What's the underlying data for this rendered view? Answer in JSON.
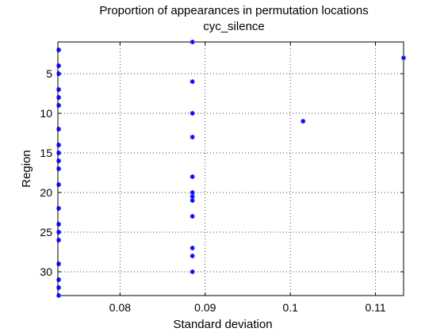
{
  "chart_data": {
    "type": "scatter",
    "title": "Proportion of appearances in permutation locations",
    "subtitle": "cyc_silence",
    "xlabel": "Standard deviation",
    "ylabel": "Region",
    "xlim": [
      0.0727,
      0.1133
    ],
    "ylim": [
      1,
      33
    ],
    "y_reversed": true,
    "grid": "dotted",
    "marker_color": "#0000ff",
    "x_ticks": [
      {
        "value": 0.08,
        "label": "0.08"
      },
      {
        "value": 0.09,
        "label": "0.09"
      },
      {
        "value": 0.1,
        "label": "0.1"
      },
      {
        "value": 0.11,
        "label": "0.11"
      }
    ],
    "y_ticks": [
      {
        "value": 5,
        "label": "5"
      },
      {
        "value": 10,
        "label": "10"
      },
      {
        "value": 15,
        "label": "15"
      },
      {
        "value": 20,
        "label": "20"
      },
      {
        "value": 25,
        "label": "25"
      },
      {
        "value": 30,
        "label": "30"
      }
    ],
    "points": [
      {
        "x": 0.0885,
        "y": 1
      },
      {
        "x": 0.1133,
        "y": 3
      },
      {
        "x": 0.0728,
        "y": 2
      },
      {
        "x": 0.0728,
        "y": 4
      },
      {
        "x": 0.0728,
        "y": 5
      },
      {
        "x": 0.0885,
        "y": 6
      },
      {
        "x": 0.0728,
        "y": 7
      },
      {
        "x": 0.0728,
        "y": 8
      },
      {
        "x": 0.0728,
        "y": 9
      },
      {
        "x": 0.0885,
        "y": 10
      },
      {
        "x": 0.1015,
        "y": 11
      },
      {
        "x": 0.0728,
        "y": 12
      },
      {
        "x": 0.0885,
        "y": 13
      },
      {
        "x": 0.0728,
        "y": 14
      },
      {
        "x": 0.0728,
        "y": 15
      },
      {
        "x": 0.0728,
        "y": 16
      },
      {
        "x": 0.0728,
        "y": 17
      },
      {
        "x": 0.0885,
        "y": 18
      },
      {
        "x": 0.0728,
        "y": 19
      },
      {
        "x": 0.0885,
        "y": 20
      },
      {
        "x": 0.0885,
        "y": 20.5
      },
      {
        "x": 0.0885,
        "y": 21
      },
      {
        "x": 0.0728,
        "y": 22
      },
      {
        "x": 0.0885,
        "y": 23
      },
      {
        "x": 0.0728,
        "y": 24
      },
      {
        "x": 0.0728,
        "y": 25
      },
      {
        "x": 0.0728,
        "y": 26
      },
      {
        "x": 0.0885,
        "y": 27
      },
      {
        "x": 0.0885,
        "y": 28
      },
      {
        "x": 0.0728,
        "y": 29
      },
      {
        "x": 0.0885,
        "y": 30
      },
      {
        "x": 0.0728,
        "y": 31
      },
      {
        "x": 0.0728,
        "y": 32
      },
      {
        "x": 0.0728,
        "y": 33
      }
    ]
  }
}
